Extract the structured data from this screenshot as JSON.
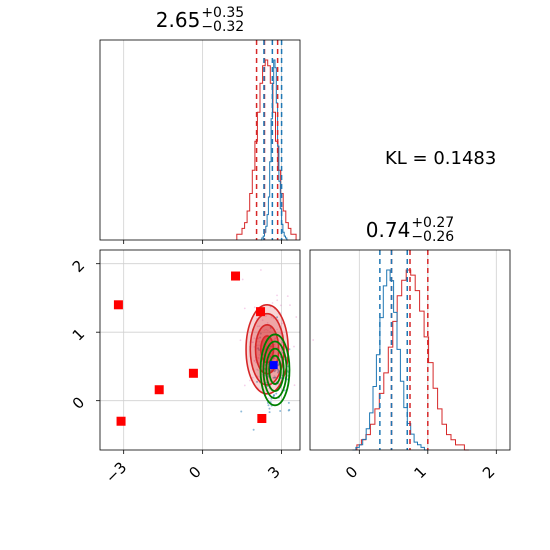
{
  "chart_data": [
    {
      "type": "histogram",
      "panel": "x-marginal",
      "title": {
        "value": "2.65",
        "upper": "+0.35",
        "lower": "−0.32"
      },
      "x_range": [
        -3.9,
        3.7
      ],
      "quantiles_blue": [
        2.33,
        2.65,
        3.0
      ],
      "quantiles_red": [
        2.05,
        2.35,
        2.85
      ],
      "blue_hist": [
        0,
        1,
        2,
        4,
        7,
        13,
        22,
        40,
        62,
        80,
        92,
        88,
        70,
        48,
        30,
        16,
        8,
        4,
        2,
        1,
        0
      ],
      "red_hist": [
        1,
        1,
        2,
        3,
        5,
        8,
        12,
        17,
        22,
        27,
        30,
        31,
        30,
        27,
        22,
        17,
        12,
        8,
        5,
        3,
        2,
        1,
        1
      ],
      "blue_x_start": 2.2,
      "blue_x_end": 3.25,
      "red_x_start": 1.3,
      "red_x_end": 3.55
    },
    {
      "type": "scatter",
      "panel": "joint",
      "xticks": [
        "−3",
        "0",
        "3"
      ],
      "yticks": [
        "0",
        "1",
        "2"
      ],
      "x_range": [
        -3.9,
        3.7
      ],
      "y_range": [
        -0.72,
        2.2
      ],
      "red_squares": [
        {
          "x": -3.2,
          "y": 1.4
        },
        {
          "x": -3.1,
          "y": -0.3
        },
        {
          "x": -1.65,
          "y": 0.16
        },
        {
          "x": -0.35,
          "y": 0.4
        },
        {
          "x": 1.25,
          "y": 1.82
        },
        {
          "x": 2.2,
          "y": 1.3
        },
        {
          "x": 2.25,
          "y": -0.26
        }
      ],
      "blue_square": {
        "x": 2.7,
        "y": 0.52
      },
      "red_contours": {
        "center": [
          2.45,
          0.75
        ],
        "rx": 0.8,
        "ry": 0.65
      },
      "green_contours": {
        "center": [
          2.75,
          0.45
        ],
        "rx": 0.55,
        "ry": 0.45
      }
    },
    {
      "type": "histogram",
      "panel": "y-marginal",
      "title": {
        "value": "0.74",
        "upper": "+0.27",
        "lower": "−0.26"
      },
      "xticks": [
        "0",
        "1",
        "2"
      ],
      "x_range": [
        -0.72,
        2.2
      ],
      "quantiles_blue": [
        0.3,
        0.47,
        0.7
      ],
      "quantiles_red": [
        0.47,
        0.74,
        1.0
      ],
      "blue_hist": [
        0,
        1,
        2,
        4,
        8,
        14,
        24,
        36,
        50,
        62,
        68,
        64,
        52,
        38,
        26,
        16,
        10,
        6,
        3,
        2,
        1,
        0
      ],
      "red_hist": [
        0,
        1,
        2,
        3,
        5,
        8,
        11,
        15,
        20,
        25,
        30,
        33,
        35,
        34,
        31,
        27,
        22,
        17,
        12,
        8,
        5,
        3,
        2,
        1,
        1,
        0
      ],
      "blue_x_start": -0.1,
      "blue_x_end": 1.0,
      "red_x_start": -0.1,
      "red_x_end": 1.6
    }
  ],
  "annotation": {
    "kl_text": "KL = 0.1483"
  },
  "colors": {
    "red": "#d62728",
    "blue": "#1f77b4",
    "green": "#008000",
    "grid": "#d0d0d0"
  }
}
